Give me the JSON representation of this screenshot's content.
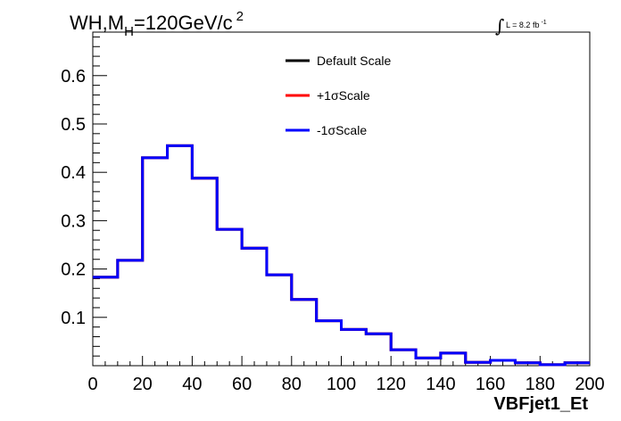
{
  "chart_data": {
    "type": "line",
    "style": "step-histogram",
    "title_parts": {
      "a": "WH,M",
      "sub": "H",
      "b": "=120GeV/c",
      "sup": "2"
    },
    "annotation": {
      "prefix": "L = 8.2 fb",
      "sup": "-1"
    },
    "xlabel": "VBFjet1_Et",
    "ylabel": "",
    "xlim": [
      0,
      200
    ],
    "ylim": [
      0,
      0.69
    ],
    "x_ticks": [
      0,
      20,
      40,
      60,
      80,
      100,
      120,
      140,
      160,
      180,
      200
    ],
    "x_tick_labels": [
      "0",
      "20",
      "40",
      "60",
      "80",
      "100",
      "120",
      "140",
      "160",
      "180",
      "200"
    ],
    "y_ticks": [
      0.1,
      0.2,
      0.3,
      0.4,
      0.5,
      0.6
    ],
    "y_tick_labels": [
      "0.1",
      "0.2",
      "0.3",
      "0.4",
      "0.5",
      "0.6"
    ],
    "bin_edges": [
      0,
      10,
      20,
      30,
      40,
      50,
      60,
      70,
      80,
      90,
      100,
      110,
      120,
      130,
      140,
      150,
      160,
      170,
      180,
      190,
      200
    ],
    "series": [
      {
        "name": "Default Scale",
        "color": "#000000",
        "values": [
          0.183,
          0.218,
          0.43,
          0.455,
          0.388,
          0.282,
          0.243,
          0.188,
          0.137,
          0.093,
          0.075,
          0.066,
          0.033,
          0.016,
          0.026,
          0.007,
          0.011,
          0.006,
          0.002,
          0.006
        ]
      },
      {
        "name": "+1σScale",
        "color": "#ff0000",
        "values": [
          0.183,
          0.218,
          0.43,
          0.455,
          0.388,
          0.282,
          0.243,
          0.188,
          0.137,
          0.093,
          0.075,
          0.066,
          0.033,
          0.016,
          0.026,
          0.007,
          0.011,
          0.006,
          0.002,
          0.006
        ]
      },
      {
        "name": "-1σScale",
        "color": "#0000ff",
        "values": [
          0.183,
          0.218,
          0.43,
          0.455,
          0.388,
          0.282,
          0.243,
          0.188,
          0.137,
          0.093,
          0.075,
          0.066,
          0.033,
          0.016,
          0.026,
          0.007,
          0.011,
          0.006,
          0.002,
          0.006
        ]
      }
    ],
    "legend_position": "top-center",
    "grid": false
  }
}
